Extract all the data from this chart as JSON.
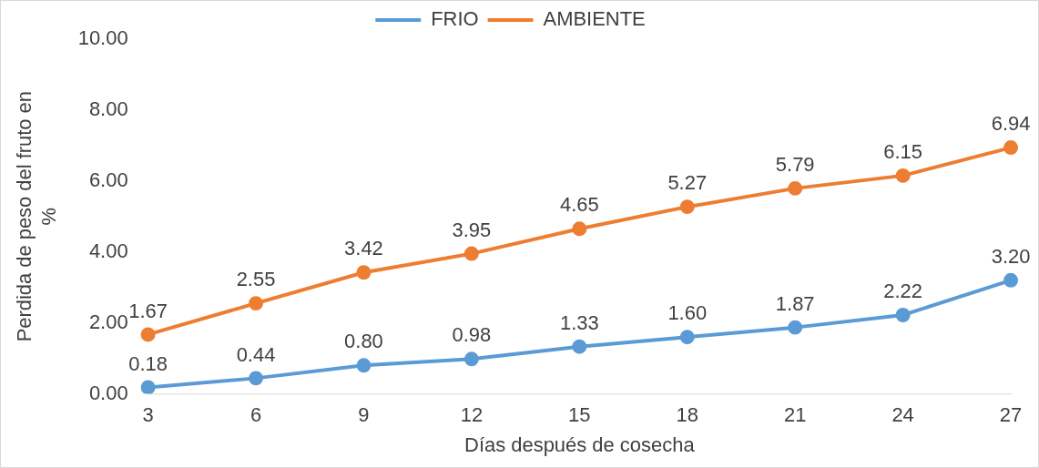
{
  "chart_data": {
    "type": "line",
    "xlabel": "Días después de cosecha",
    "ylabel": "Perdida de peso del fruto en %",
    "categories": [
      "3",
      "6",
      "9",
      "12",
      "15",
      "18",
      "21",
      "24",
      "27"
    ],
    "series": [
      {
        "name": "FRIO",
        "color": "#5b9bd5",
        "values": [
          0.18,
          0.44,
          0.8,
          0.98,
          1.33,
          1.6,
          1.87,
          2.22,
          3.2
        ],
        "value_labels": [
          "0.18",
          "0.44",
          "0.80",
          "0.98",
          "1.33",
          "1.60",
          "1.87",
          "2.22",
          "3.20"
        ]
      },
      {
        "name": "AMBIENTE",
        "color": "#ed7d31",
        "values": [
          1.67,
          2.55,
          3.42,
          3.95,
          4.65,
          5.27,
          5.79,
          6.15,
          6.94
        ],
        "value_labels": [
          "1.67",
          "2.55",
          "3.42",
          "3.95",
          "4.65",
          "5.27",
          "5.79",
          "6.15",
          "6.94"
        ]
      }
    ],
    "ylim": [
      0,
      10
    ],
    "yticks": [
      {
        "value": 0,
        "label": "0.00"
      },
      {
        "value": 2,
        "label": "2.00"
      },
      {
        "value": 4,
        "label": "4.00"
      },
      {
        "value": 6,
        "label": "6.00"
      },
      {
        "value": 8,
        "label": "8.00"
      },
      {
        "value": 10,
        "label": "10.00"
      }
    ],
    "grid": false,
    "legend": "top",
    "marker": "circle",
    "line_style": "solid"
  }
}
